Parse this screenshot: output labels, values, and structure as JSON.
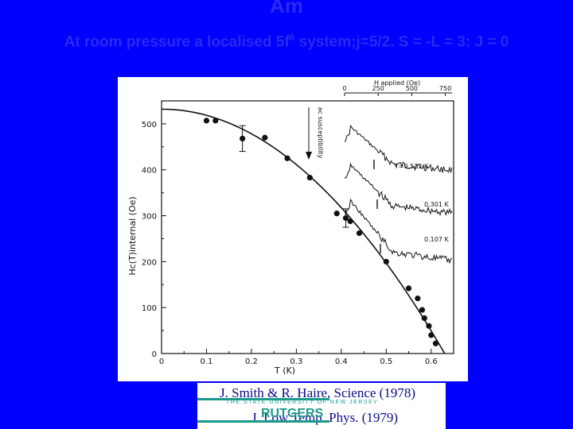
{
  "slide": {
    "title": "Am",
    "subtitle_pre": "At room pressure a localised 5f",
    "subtitle_sup": "6",
    "subtitle_post": " system;j=5/2. S = -L = 3: J = 0"
  },
  "chart_data": {
    "type": "scatter",
    "title": "",
    "xlabel": "T (K)",
    "ylabel": "Hc(T)internal (Oe)",
    "xlim": [
      0,
      0.65
    ],
    "ylim": [
      0,
      550
    ],
    "x_ticks": [
      "0",
      "0.1",
      "0.2",
      "0.3",
      "0.4",
      "0.5",
      "0.6"
    ],
    "y_ticks": [
      "0",
      "100",
      "200",
      "300",
      "400",
      "500"
    ],
    "series": [
      {
        "points": [
          [
            0.1,
            507
          ],
          [
            0.12,
            507
          ],
          [
            0.18,
            468
          ],
          [
            0.23,
            470
          ],
          [
            0.28,
            425
          ],
          [
            0.33,
            383
          ],
          [
            0.39,
            305
          ],
          [
            0.41,
            295
          ],
          [
            0.42,
            288
          ],
          [
            0.44,
            262
          ],
          [
            0.5,
            200
          ],
          [
            0.55,
            142
          ],
          [
            0.57,
            120
          ],
          [
            0.58,
            95
          ],
          [
            0.585,
            77
          ],
          [
            0.595,
            60
          ],
          [
            0.6,
            40
          ],
          [
            0.61,
            22
          ]
        ],
        "error_bars": [
          {
            "x": 0.18,
            "y": 468,
            "err": 28
          },
          {
            "x": 0.41,
            "y": 295,
            "err": 20
          }
        ]
      }
    ],
    "fit_curve": {
      "h0": 532,
      "tc": 0.63
    },
    "inset": {
      "top_axis_label": "H applied (Oe)",
      "top_ticks": [
        "0",
        "250",
        "500",
        "750"
      ],
      "side_label": "ac susceptibility",
      "traces": [
        {
          "label": "T=0.532 K"
        },
        {
          "label": "0.301 K"
        },
        {
          "label": "0.107 K"
        }
      ]
    }
  },
  "references": {
    "ref1": "J. Smith & R. Haire, Science (1978)",
    "ref2": "J. Low Temp. Phys. (1979)",
    "university": "THE STATE UNIVERSITY OF NEW JERSEY",
    "logo": "RUTGERS"
  }
}
